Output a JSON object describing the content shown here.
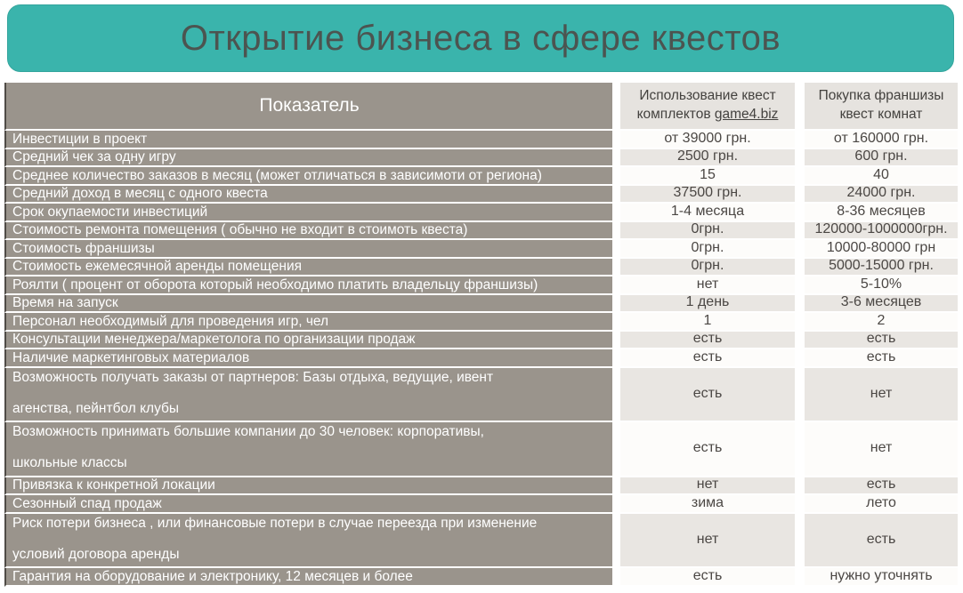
{
  "banner": {
    "title": "Открытие бизнеса в сфере квестов",
    "bg_color": "#3ab4ac",
    "text_color": "#4c5450"
  },
  "table": {
    "colors": {
      "label_column_bg": "#9a948c",
      "label_column_text": "#ffffff",
      "label_column_edge": "#4f4b46",
      "header_value_bg": "#e6e3df",
      "row_stripe_light": "#fdfcfa",
      "row_stripe_gray": "#e9e6e2",
      "value_text": "#4b4744"
    },
    "header": {
      "col1": "Показатель",
      "col2_line1": "Использование квест",
      "col2_line2_prefix": "комплектов ",
      "col2_link": "game4.biz",
      "col3_line1": "Покупка  франшизы",
      "col3_line2": "квест комнат"
    },
    "rows": [
      {
        "label": "Инвестиции в проект",
        "v1": "от 39000 грн.",
        "v2": "от 160000 грн."
      },
      {
        "label": "Средний чек за одну игру",
        "v1": "2500 грн.",
        "v2": "600 грн."
      },
      {
        "label": "Среднее количество заказов в месяц (может отличаться в зависимоти от региона)",
        "v1": "15",
        "v2": "40"
      },
      {
        "label": "Средний доход в месяц с одного квеста",
        "v1": "37500 грн.",
        "v2": "24000 грн."
      },
      {
        "label": "Срок окупаемости инвестиций",
        "v1": "1-4 месяца",
        "v2": "8-36 месяцев"
      },
      {
        "label": "Стоимость ремонта помещения ( обычно не входит в стоимоть квеста)",
        "v1": "0грн.",
        "v2": "120000-1000000грн."
      },
      {
        "label": "Стоимость франшизы",
        "v1": "0грн.",
        "v2": "10000-80000 грн"
      },
      {
        "label": "Стоимость ежемесячной аренды помещения",
        "v1": "0грн.",
        "v2": "5000-15000 грн."
      },
      {
        "label": "Роялти ( процент от оборота который необходимо платить владельцу франшизы)",
        "v1": "нет",
        "v2": "5-10%"
      },
      {
        "label": "Время на запуск",
        "v1": "1 день",
        "v2": "3-6 месяцев"
      },
      {
        "label": "Персонал необходимый для проведения игр, чел",
        "v1": "1",
        "v2": "2"
      },
      {
        "label": "Консультации менеджера/маркетолога по организации продаж",
        "v1": "есть",
        "v2": "есть"
      },
      {
        "label": "Наличие маркетинговых материалов",
        "v1": "есть",
        "v2": "есть"
      },
      {
        "label": "Возможность получать заказы от партнеров: Базы отдыха, ведущие, ивент",
        "label2": "агенства, пейнтбол клубы",
        "v1": "есть",
        "v2": "нет"
      },
      {
        "label": "Возможность принимать большие компании до 30 человек: корпоративы,",
        "label2": "школьные классы",
        "v1": "есть",
        "v2": "нет"
      },
      {
        "label": "Привязка к конкретной локации",
        "v1": "нет",
        "v2": "есть"
      },
      {
        "label": "Сезонный спад продаж",
        "v1": "зима",
        "v2": "лето"
      },
      {
        "label": "Риск потери бизнеса , или финансовые потери в случае переезда при изменение",
        "label2": "условий договора аренды",
        "v1": "нет",
        "v2": "есть"
      },
      {
        "label": "Гарантия на оборудование и электронику, 12 месяцев и более",
        "v1": "есть",
        "v2": "нужно уточнять"
      }
    ]
  }
}
